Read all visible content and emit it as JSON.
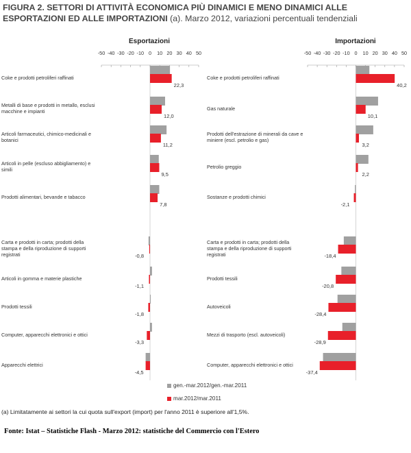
{
  "title": {
    "bold": "FIGURA 2. SETTORI DI ATTIVITÀ ECONOMICA PIÙ DINAMICI E MENO DINAMICI ALLE ESPORTAZIONI ED ALLE IMPORTAZIONI",
    "rest": " (a). Marzo 2012, variazioni percentuali tendenziali"
  },
  "legend": {
    "cumulative": "gen.-mar.2012/gen.-mar.2011",
    "monthly": "mar.2012/mar.2011"
  },
  "colors": {
    "cumulative": "#a0a0a0",
    "monthly": "#e8202a"
  },
  "note": "(a) Limitatamente ai settori la cui quota sull'export (import) per l'anno 2011 è superiore all'1,5%.",
  "source": "Fonte: Istat – Statistiche Flash - Marzo 2012: statistiche del Commercio con l'Estero",
  "chart_data": [
    {
      "type": "bar",
      "title": "Esportazioni",
      "orientation": "horizontal",
      "xlim": [
        -50,
        50
      ],
      "ticks": [
        -50,
        -40,
        -30,
        -20,
        -10,
        0,
        10,
        20,
        30,
        40,
        50
      ],
      "categories": [
        "Coke e prodotti petroliferi raffinati",
        "Metalli di base e prodotti in metallo, esclusi macchine e impianti",
        "Articoli farmaceutici, chimico-medicinali e botanici",
        "Articoli in pelle (escluso abbigliamento) e simili",
        "Prodotti alimentari, bevande e tabacco",
        "Carta e prodotti in carta; prodotti della stampa e della riproduzione di supporti registrati",
        "Articoli in gomma e materie plastiche",
        "Prodotti tessili",
        "Computer, apparecchi elettronici e ottici",
        "Apparecchi elettrici"
      ],
      "series": [
        {
          "name": "gen.-mar.2012/gen.-mar.2011",
          "values": [
            20.5,
            15.5,
            17.0,
            9.0,
            9.5,
            -1.5,
            2.0,
            0.5,
            2.0,
            -4.5
          ]
        },
        {
          "name": "mar.2012/mar.2011",
          "values": [
            22.3,
            12.0,
            11.2,
            9.5,
            7.8,
            -0.8,
            -1.1,
            -1.8,
            -3.3,
            -4.5
          ]
        }
      ],
      "labels": [
        "22,3",
        "12,0",
        "11,2",
        "9,5",
        "7,8",
        "-0,8",
        "-1,1",
        "-1,8",
        "-3,3",
        "-4,5"
      ]
    },
    {
      "type": "bar",
      "title": "Importazioni",
      "orientation": "horizontal",
      "xlim": [
        -50,
        50
      ],
      "ticks": [
        -50,
        -40,
        -30,
        -20,
        -10,
        0,
        10,
        20,
        30,
        40,
        50
      ],
      "categories": [
        "Coke e prodotti petroliferi raffinati",
        "Gas naturale",
        "Prodotti dell'estrazione di minerali da cave e miniere (escl. petrolio e gas)",
        "Petrolio greggio",
        "Sostanze e prodotti chimici",
        "Carta e prodotti in carta; prodotti della stampa e della riproduzione di supporti registrati",
        "Prodotti tessili",
        "Autoveicoli",
        "Mezzi di trasporto (escl. autoveicoli)",
        "Computer, apparecchi elettronici e ottici"
      ],
      "series": [
        {
          "name": "gen.-mar.2012/gen.-mar.2011",
          "values": [
            14.0,
            23.0,
            18.0,
            13.0,
            -1.0,
            -12.5,
            -15.0,
            -19.0,
            -14.0,
            -34.0
          ]
        },
        {
          "name": "mar.2012/mar.2011",
          "values": [
            40.2,
            10.1,
            3.2,
            2.2,
            -2.1,
            -18.4,
            -20.8,
            -28.4,
            -28.9,
            -37.4
          ]
        }
      ],
      "labels": [
        "40,2",
        "10,1",
        "3,2",
        "2,2",
        "-2,1",
        "-18,4",
        "-20,8",
        "-28,4",
        "-28,9",
        "-37,4"
      ]
    }
  ]
}
